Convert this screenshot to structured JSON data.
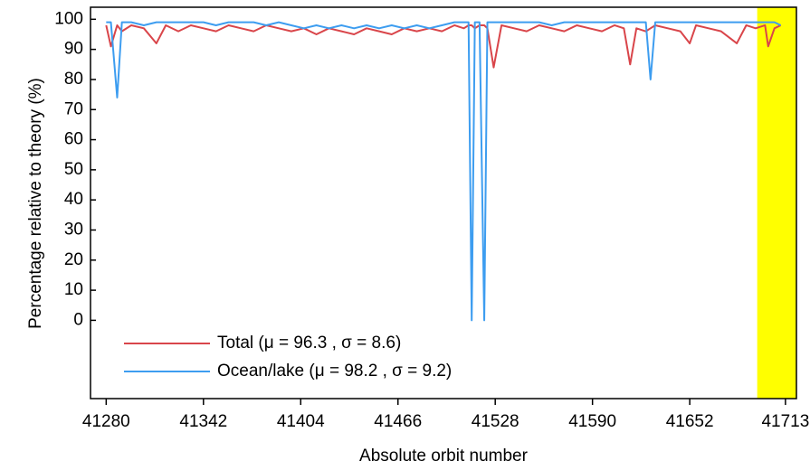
{
  "chart_data": {
    "type": "line",
    "x_label": "Absolute orbit number",
    "y_label": "Percentage relative to theory (%)",
    "x": [
      41280,
      41283,
      41287,
      41290,
      41296,
      41304,
      41312,
      41318,
      41326,
      41334,
      41342,
      41350,
      41358,
      41366,
      41374,
      41382,
      41390,
      41398,
      41406,
      41414,
      41422,
      41430,
      41438,
      41446,
      41454,
      41462,
      41470,
      41478,
      41486,
      41494,
      41502,
      41508,
      41511,
      41513,
      41515,
      41518,
      41521,
      41523,
      41527,
      41532,
      41540,
      41548,
      41556,
      41564,
      41572,
      41580,
      41588,
      41596,
      41604,
      41610,
      41614,
      41618,
      41624,
      41627,
      41630,
      41638,
      41646,
      41652,
      41656,
      41664,
      41672,
      41682,
      41688,
      41694,
      41700,
      41702,
      41706,
      41710
    ],
    "series": [
      {
        "name": "Total (μ = 96.3 , σ = 8.6)",
        "color": "#d9454a",
        "values": [
          98,
          91,
          98,
          96,
          98,
          97,
          92,
          98,
          96,
          98,
          97,
          96,
          98,
          97,
          96,
          98,
          97,
          96,
          97,
          95,
          97,
          96,
          95,
          97,
          96,
          95,
          97,
          96,
          97,
          96,
          98,
          97,
          98,
          98,
          97,
          98,
          98,
          97,
          84,
          98,
          97,
          96,
          98,
          97,
          96,
          98,
          97,
          96,
          98,
          97,
          85,
          97,
          96,
          97,
          98,
          97,
          96,
          92,
          98,
          97,
          96,
          92,
          98,
          97,
          98,
          91,
          97,
          98
        ]
      },
      {
        "name": "Ocean/lake (μ = 98.2 , σ = 9.2)",
        "color": "#3d9df0",
        "values": [
          99,
          99,
          74,
          99,
          99,
          98,
          99,
          99,
          99,
          99,
          99,
          98,
          99,
          99,
          99,
          98,
          99,
          98,
          97,
          98,
          97,
          98,
          97,
          98,
          97,
          98,
          97,
          98,
          97,
          98,
          99,
          99,
          99,
          0,
          99,
          99,
          0,
          99,
          99,
          99,
          99,
          99,
          99,
          98,
          99,
          99,
          99,
          99,
          99,
          99,
          99,
          99,
          99,
          80,
          99,
          99,
          99,
          99,
          99,
          99,
          99,
          99,
          99,
          99,
          99,
          99,
          99,
          98
        ]
      }
    ],
    "xlim": [
      41270,
      41720
    ],
    "ylim": [
      -26,
      104
    ],
    "xticks": [
      41280,
      41342,
      41404,
      41466,
      41528,
      41590,
      41652,
      41713
    ],
    "yticks": [
      0,
      10,
      20,
      30,
      40,
      50,
      60,
      70,
      80,
      90,
      100
    ],
    "shaded_region": {
      "x": [
        41695,
        41720
      ],
      "color": "#ffff00"
    }
  }
}
